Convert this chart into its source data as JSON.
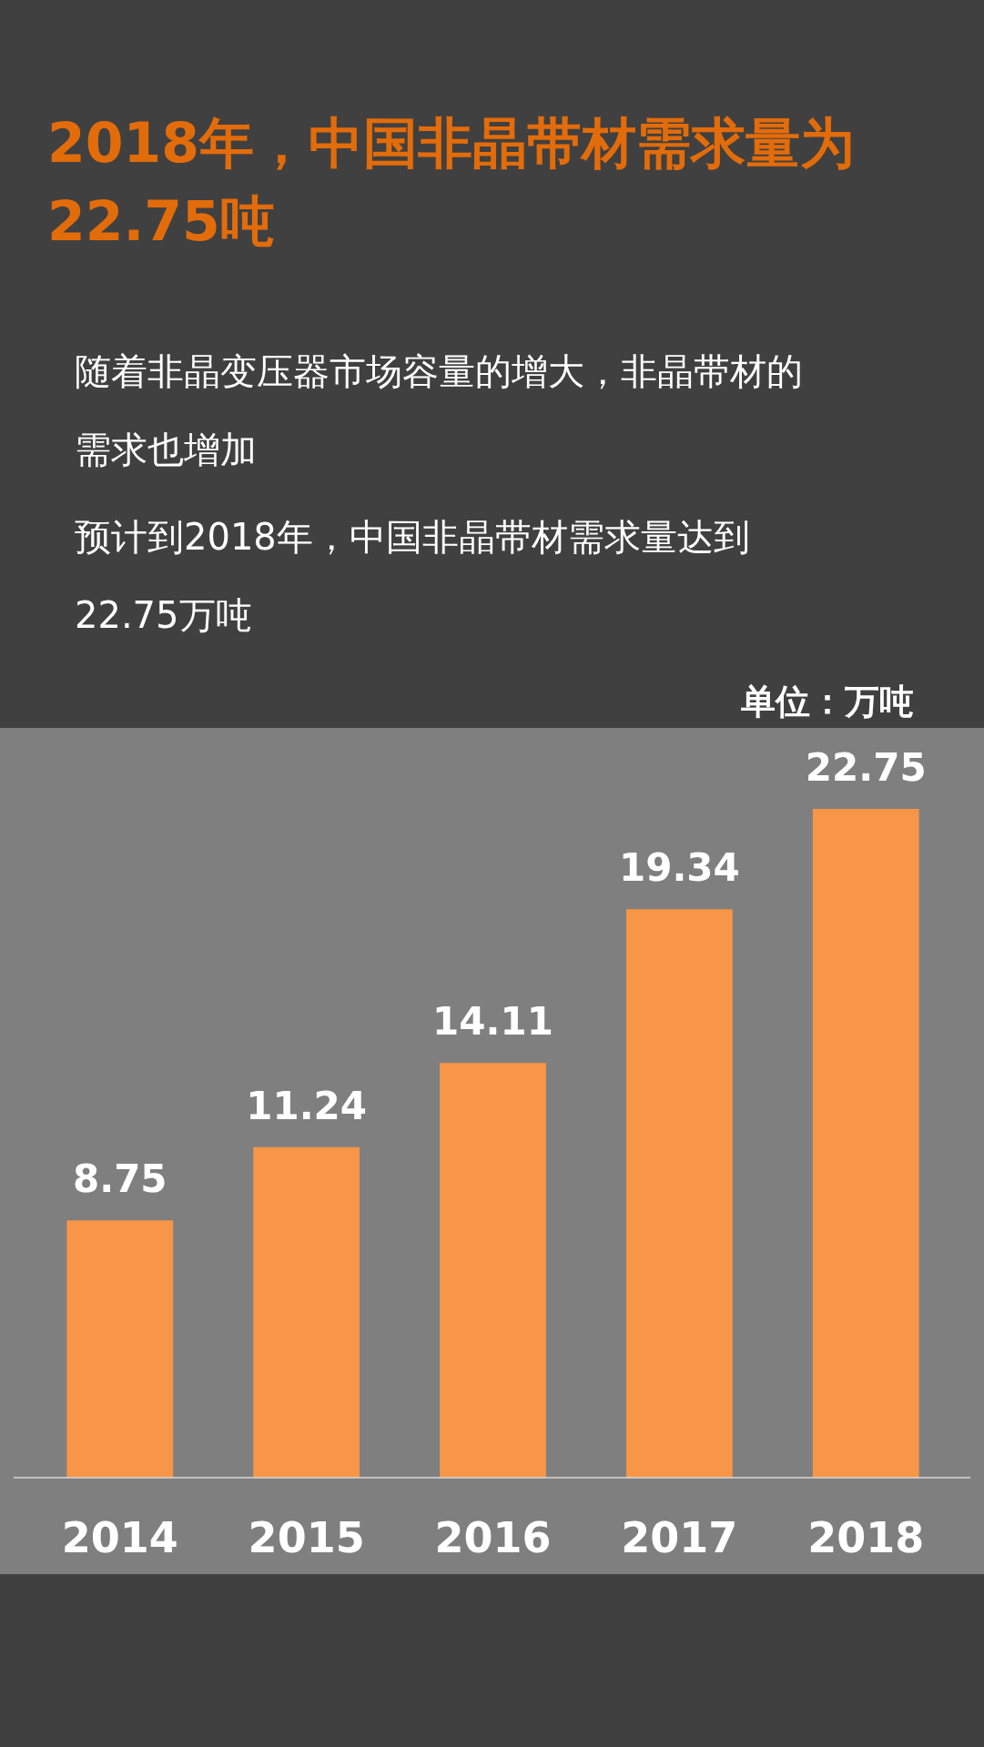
{
  "chart_data": {
    "type": "bar",
    "title": "2018年，中国非晶带材需求量为22.75吨",
    "annotations": [
      "随着非晶变压器市场容量的增大，非晶带材的需求也增加",
      "预计到2018年，中国非晶带材需求量达到22.75万吨",
      "单位：万吨"
    ],
    "categories": [
      "2014",
      "2015",
      "2016",
      "2017",
      "2018"
    ],
    "values": [
      8.75,
      11.24,
      14.11,
      19.34,
      22.75
    ],
    "color": "#f79646",
    "data_labels": true
  }
}
